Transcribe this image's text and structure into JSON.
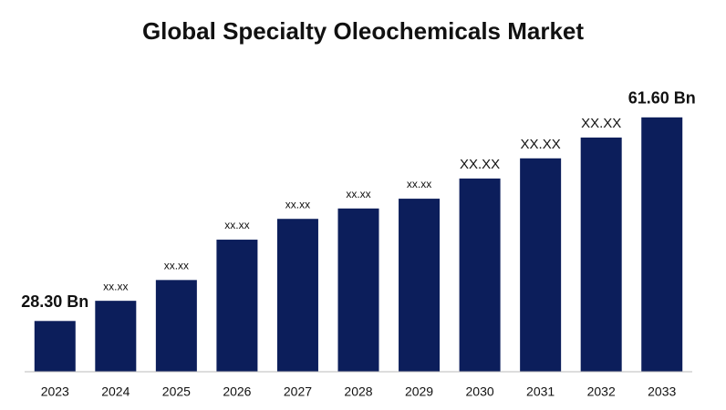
{
  "chart_data": {
    "type": "bar",
    "title": "Global Specialty Oleochemicals Market",
    "categories": [
      "2023",
      "2024",
      "2025",
      "2026",
      "2027",
      "2028",
      "2029",
      "2030",
      "2031",
      "2032",
      "2033"
    ],
    "values": [
      28.3,
      31.6,
      35.0,
      41.6,
      45.0,
      46.7,
      48.3,
      51.6,
      54.9,
      58.3,
      61.6
    ],
    "value_labels": [
      "28.30 Bn",
      "xx.xx",
      "xx.xx",
      "xx.xx",
      "xx.xx",
      "xx.xx",
      "xx.xx",
      "XX.XX",
      "XX.XX",
      "XX.XX",
      "61.60 Bn"
    ],
    "color": "#0c1e5b",
    "ylim": [
      20,
      65
    ]
  }
}
